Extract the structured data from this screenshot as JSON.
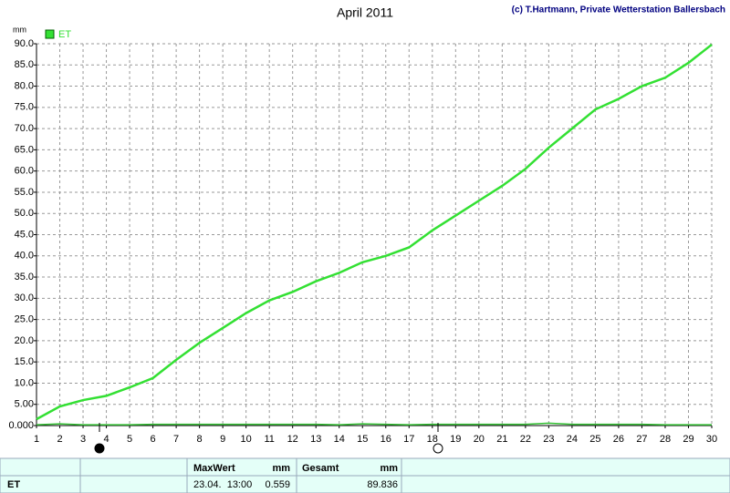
{
  "chart_data": {
    "type": "line",
    "title": "April 2011",
    "subtitle": "(c) T.Hartmann, Private Wetterstation Ballersbach",
    "y_label": "mm",
    "x": [
      1,
      2,
      3,
      4,
      5,
      6,
      7,
      8,
      9,
      10,
      11,
      12,
      13,
      14,
      15,
      16,
      17,
      18,
      19,
      20,
      21,
      22,
      23,
      24,
      25,
      26,
      27,
      28,
      29,
      30
    ],
    "series": [
      {
        "name": "ET",
        "color": "#33e033",
        "values": [
          1.5,
          4.5,
          6,
          7,
          9,
          11.2,
          15.5,
          19.5,
          23,
          26.5,
          29.5,
          31.5,
          34,
          36,
          38.5,
          40,
          42,
          46,
          49.5,
          53,
          56.5,
          60.5,
          65.5,
          70,
          74.5,
          77,
          80,
          82,
          85.5,
          89.8
        ]
      },
      {
        "color": "#33c033",
        "values": [
          0.2,
          0.4,
          0.2,
          0.2,
          0.2,
          0.3,
          0.3,
          0.3,
          0.3,
          0.3,
          0.3,
          0.3,
          0.3,
          0.2,
          0.4,
          0.3,
          0.2,
          0.3,
          0.3,
          0.3,
          0.3,
          0.3,
          0.559,
          0.3,
          0.3,
          0.3,
          0.3,
          0.2,
          0.2,
          0.2
        ]
      }
    ],
    "xlim": [
      1,
      30
    ],
    "xticks": [
      1,
      2,
      3,
      4,
      5,
      6,
      7,
      8,
      9,
      10,
      11,
      12,
      13,
      14,
      15,
      16,
      17,
      18,
      19,
      20,
      21,
      22,
      23,
      24,
      25,
      26,
      27,
      28,
      29,
      30
    ],
    "ylim": [
      0,
      90
    ],
    "yticks": [
      {
        "value": 0,
        "label": "0.000"
      },
      {
        "value": 5,
        "label": "5.00"
      },
      {
        "value": 10,
        "label": "10.0"
      },
      {
        "value": 15,
        "label": "15.0"
      },
      {
        "value": 20,
        "label": "20.0"
      },
      {
        "value": 25,
        "label": "25.0"
      },
      {
        "value": 30,
        "label": "30.0"
      },
      {
        "value": 35,
        "label": "35.0"
      },
      {
        "value": 40,
        "label": "40.0"
      },
      {
        "value": 45,
        "label": "45.0"
      },
      {
        "value": 50,
        "label": "50.0"
      },
      {
        "value": 55,
        "label": "55.0"
      },
      {
        "value": 60,
        "label": "60.0"
      },
      {
        "value": 65,
        "label": "65.0"
      },
      {
        "value": 70,
        "label": "70.0"
      },
      {
        "value": 75,
        "label": "75.0"
      },
      {
        "value": 80,
        "label": "80.0"
      },
      {
        "value": 85,
        "label": "85.0"
      },
      {
        "value": 90,
        "label": "90.0"
      }
    ],
    "grid": true
  },
  "footer": {
    "label": "ET",
    "max_header": "MaxWert",
    "max_unit": "mm",
    "max_time": "23.04.  13:00",
    "max_value": "0.559",
    "total_header": "Gesamt",
    "total_unit": "mm",
    "total_value": "89.836"
  }
}
